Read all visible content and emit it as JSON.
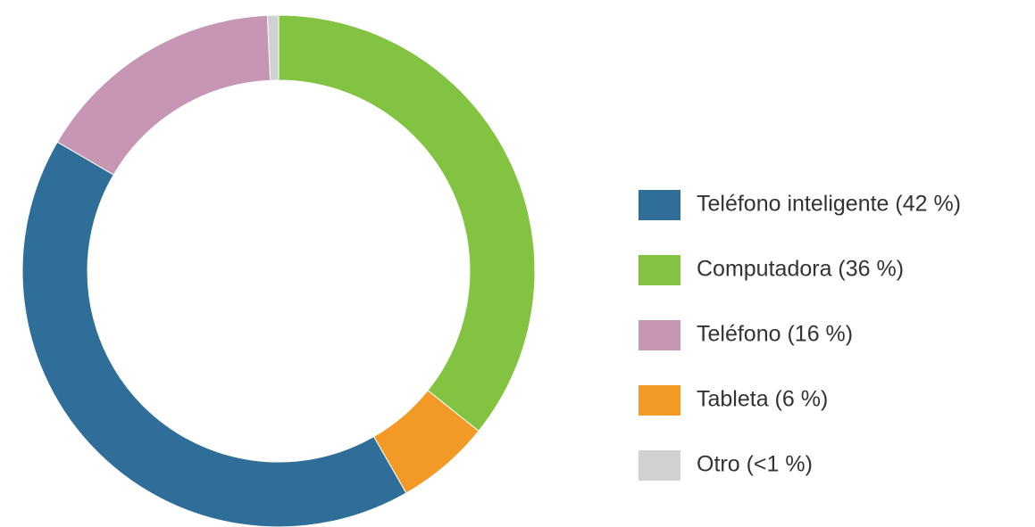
{
  "chart_data": {
    "type": "donut",
    "categories": [
      "Teléfono inteligente (42 %)",
      "Computadora (36 %)",
      "Teléfono (16 %)",
      "Tableta (6 %)",
      "Otro (<1 %)"
    ],
    "values": [
      42,
      36,
      16,
      6,
      0.7
    ],
    "colors": [
      "#2e6e99",
      "#82c341",
      "#c696b4",
      "#f39a26",
      "#d0d1d3"
    ],
    "draw_order": [
      1,
      3,
      0,
      2,
      4
    ],
    "legend": "right"
  }
}
